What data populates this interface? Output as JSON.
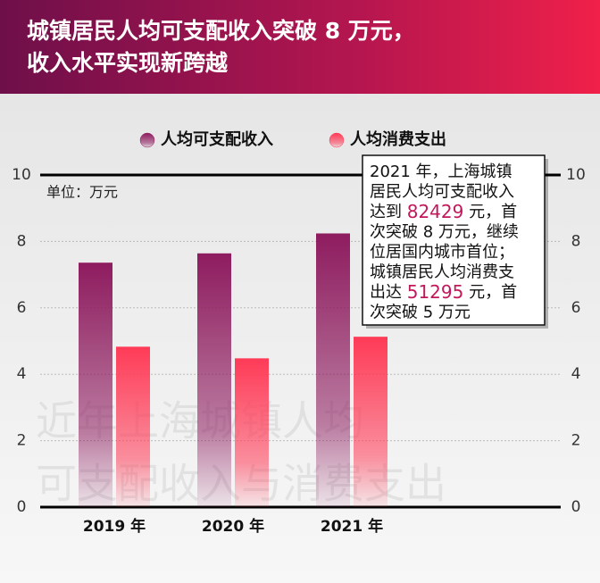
{
  "chart_data": {
    "type": "bar",
    "title": [
      "城镇居民人均可支配收入突破 8 万元，",
      "收入水平实现新跨越"
    ],
    "unit": "单位：万元",
    "watermark": [
      "近年上海城镇人均",
      "可支配收入与消费支出"
    ],
    "categories": [
      "2019 年",
      "2020 年",
      "2021 年"
    ],
    "series": [
      {
        "name": "人均可支配收入",
        "color": "#8e1c5f",
        "values": [
          7.36,
          7.64,
          8.24
        ]
      },
      {
        "name": "人均消费支出",
        "color": "#ff3b57",
        "values": [
          4.83,
          4.48,
          5.13
        ]
      }
    ],
    "ylim": [
      0,
      10
    ],
    "yticks": [
      0,
      2,
      4,
      6,
      8,
      10
    ],
    "y2lim": [
      0,
      10
    ],
    "y2ticks": [
      0,
      2,
      4,
      6,
      8,
      10
    ],
    "grid": true,
    "annotation": [
      [
        "2021 年，上海城镇"
      ],
      [
        "居民人均可支配收入"
      ],
      [
        "达到 ",
        {
          "text": "82429",
          "color": "#c2185b"
        },
        " 元，首"
      ],
      [
        "次突破 8 万元，继续"
      ],
      [
        "位居国内城市首位；"
      ],
      [
        "城镇居民人均消费支"
      ],
      [
        "出达 ",
        {
          "text": "51295",
          "color": "#c2185b"
        },
        " 元，首"
      ],
      [
        "次突破 5 万元"
      ]
    ]
  }
}
